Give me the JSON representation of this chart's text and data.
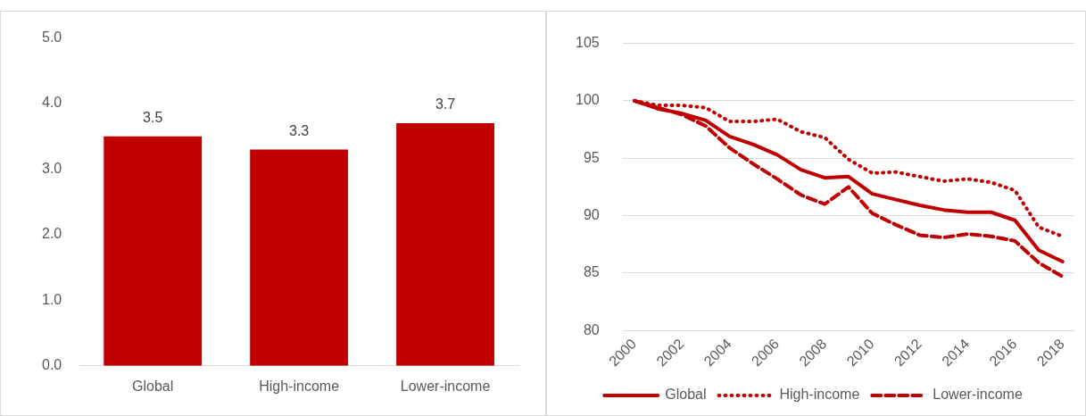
{
  "chart_data": [
    {
      "type": "bar",
      "categories": [
        "Global",
        "High-income",
        "Lower-income"
      ],
      "values": [
        3.5,
        3.3,
        3.7
      ],
      "color": "#c00000",
      "ylim": [
        0,
        5
      ],
      "yticks": [
        {
          "value": 0,
          "label": "0.0"
        },
        {
          "value": 1,
          "label": "1.0"
        },
        {
          "value": 2,
          "label": "2.0"
        },
        {
          "value": 3,
          "label": "3.0"
        },
        {
          "value": 4,
          "label": "4.0"
        },
        {
          "value": 5,
          "label": "5.0"
        }
      ],
      "grid": false,
      "legend": false,
      "data_labels": true
    },
    {
      "type": "line",
      "x": [
        2000,
        2001,
        2002,
        2003,
        2004,
        2005,
        2006,
        2007,
        2008,
        2009,
        2010,
        2011,
        2012,
        2013,
        2014,
        2015,
        2016,
        2017,
        2018
      ],
      "xlim": [
        1999.5,
        2018.5
      ],
      "xticks": [
        2000,
        2002,
        2004,
        2006,
        2008,
        2010,
        2012,
        2014,
        2016,
        2018
      ],
      "ylim": [
        80,
        105
      ],
      "yticks": [
        80,
        85,
        90,
        95,
        100,
        105
      ],
      "grid": "y",
      "legend": "bottom",
      "marker": "none",
      "series": [
        {
          "name": "Global",
          "color": "#c00000",
          "line_style": "solid",
          "values": [
            100,
            99.3,
            98.9,
            98.3,
            96.9,
            96.2,
            95.3,
            94.0,
            93.3,
            93.4,
            91.9,
            91.4,
            90.9,
            90.5,
            90.3,
            90.3,
            89.6,
            87.0,
            86.0
          ]
        },
        {
          "name": "High-income",
          "color": "#c00000",
          "line_style": "dotted",
          "values": [
            100,
            99.6,
            99.6,
            99.4,
            98.2,
            98.2,
            98.4,
            97.3,
            96.8,
            94.9,
            93.7,
            93.8,
            93.4,
            93.0,
            93.2,
            92.9,
            92.2,
            89.0,
            88.2
          ]
        },
        {
          "name": "Lower-income",
          "color": "#c00000",
          "line_style": "dashed",
          "values": [
            100,
            99.4,
            98.8,
            97.8,
            95.9,
            94.5,
            93.2,
            91.8,
            91.0,
            92.5,
            90.2,
            89.2,
            88.3,
            88.1,
            88.4,
            88.2,
            87.8,
            85.9,
            84.7
          ]
        }
      ]
    }
  ]
}
